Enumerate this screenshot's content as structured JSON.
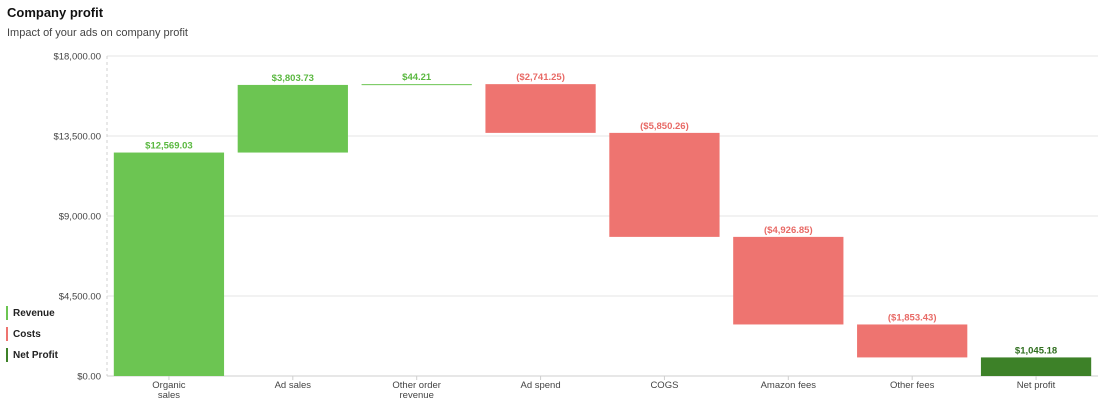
{
  "header": {
    "title": "Company profit",
    "subtitle": "Impact of your ads on company profit"
  },
  "legend": [
    {
      "label": "Revenue",
      "color": "#6cc552"
    },
    {
      "label": "Costs",
      "color": "#ee7470"
    },
    {
      "label": "Net Profit",
      "color": "#3d8128"
    }
  ],
  "colors": {
    "revenue": "#6cc552",
    "costs": "#ee7470",
    "net": "#3d8128",
    "revenue_text": "#5ab840",
    "costs_text": "#e86a66",
    "net_text": "#2f6e1e"
  },
  "chart_data": {
    "type": "bar",
    "subtype": "waterfall",
    "title": "Company profit",
    "subtitle": "Impact of your ads on company profit",
    "ylim": [
      0,
      18000
    ],
    "yticks": [
      "$0.00",
      "$4,500.00",
      "$9,000.00",
      "$13,500.00",
      "$18,000.00"
    ],
    "ytick_values": [
      0,
      4500,
      9000,
      13500,
      18000
    ],
    "grid": true,
    "legend_position": "bottom-left",
    "bars": [
      {
        "category": [
          "Organic",
          "sales"
        ],
        "start": 0,
        "end": 12569.03,
        "label": "$12,569.03",
        "kind": "revenue"
      },
      {
        "category": [
          "Ad sales"
        ],
        "start": 12569.03,
        "end": 16372.76,
        "label": "$3,803.73",
        "kind": "revenue"
      },
      {
        "category": [
          "Other order",
          "revenue"
        ],
        "start": 16372.76,
        "end": 16416.97,
        "label": "$44.21",
        "kind": "revenue"
      },
      {
        "category": [
          "Ad spend"
        ],
        "start": 16416.97,
        "end": 13675.72,
        "label": "($2,741.25)",
        "kind": "costs"
      },
      {
        "category": [
          "COGS"
        ],
        "start": 13675.72,
        "end": 7825.46,
        "label": "($5,850.26)",
        "kind": "costs"
      },
      {
        "category": [
          "Amazon fees"
        ],
        "start": 7825.46,
        "end": 2898.61,
        "label": "($4,926.85)",
        "kind": "costs"
      },
      {
        "category": [
          "Other fees"
        ],
        "start": 2898.61,
        "end": 1045.18,
        "label": "($1,853.43)",
        "kind": "costs"
      },
      {
        "category": [
          "Net profit"
        ],
        "start": 0,
        "end": 1045.18,
        "label": "$1,045.18",
        "kind": "net"
      }
    ]
  }
}
